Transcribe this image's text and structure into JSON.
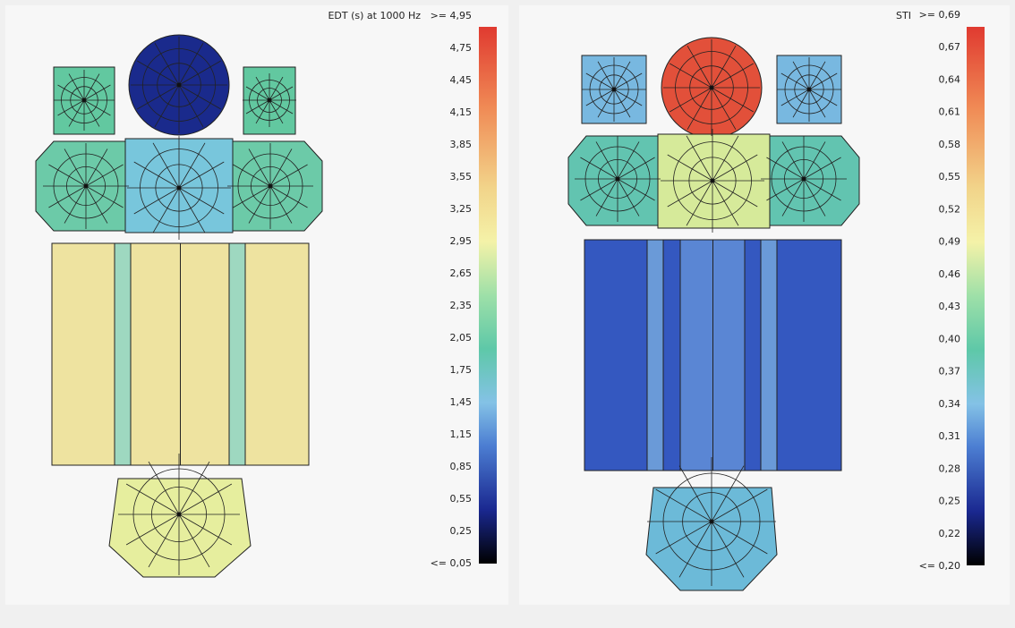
{
  "panels": [
    {
      "title": "EDT (s)  at 1000 Hz",
      "scale_labels": [
        ">= 4,95",
        "4,75",
        "4,45",
        "4,15",
        "3,85",
        "3,55",
        "3,25",
        "2,95",
        "2,65",
        "2,35",
        "2,05",
        "1,75",
        "1,45",
        "1,15",
        "0,85",
        "0,55",
        "0,25",
        "<= 0,05"
      ]
    },
    {
      "title": "STI",
      "scale_labels": [
        ">= 0,69",
        "0,67",
        "0,64",
        "0,61",
        "0,58",
        "0,55",
        "0,52",
        "0,49",
        "0,46",
        "0,43",
        "0,40",
        "0,37",
        "0,34",
        "0,31",
        "0,28",
        "0,25",
        "0,22",
        "<= 0,20"
      ]
    }
  ]
}
